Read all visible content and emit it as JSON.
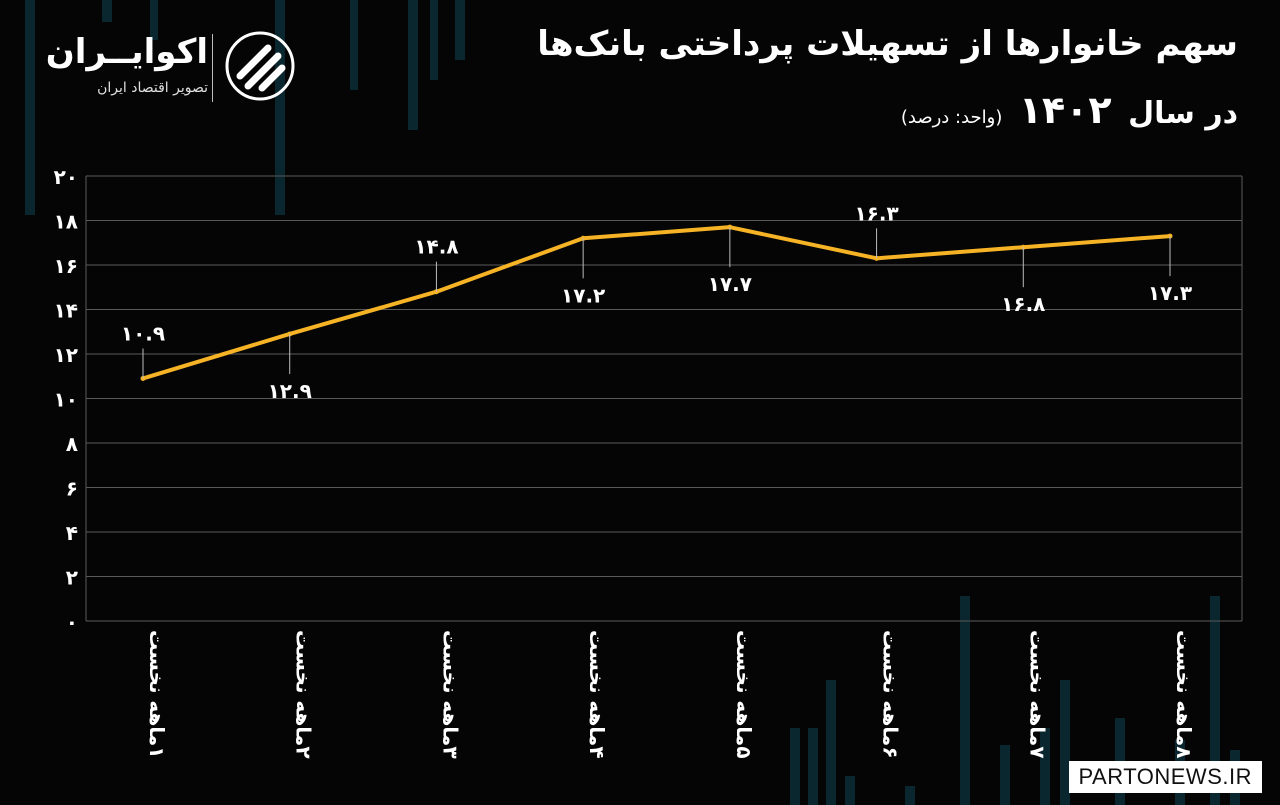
{
  "header": {
    "title_line1": "سهم خانوارها از تسهیلات پرداختی بانک‌ها",
    "title_line2_prefix": "در سال",
    "title_year": "۱۴۰۲",
    "unit": "(واحد: درصد)"
  },
  "brand": {
    "name": "اکوایــران",
    "tagline": "تصویر اقتصاد ایران",
    "watermark": "PARTONEWS.IR"
  },
  "colors": {
    "background": "#050505",
    "line": "#f5b325",
    "grid": "#5a5a5a",
    "text": "#ffffff"
  },
  "chart_data": {
    "type": "line",
    "categories": [
      "۱ماهه نخست",
      "۲ماهه نخست",
      "۳ماهه نخست",
      "۴ماهه نخست",
      "۵ماهه نخست",
      "۶ماهه نخست",
      "۷ماهه نخست",
      "۸ماهه نخست"
    ],
    "values": [
      10.9,
      12.9,
      14.8,
      17.2,
      17.7,
      16.3,
      16.8,
      17.3
    ],
    "data_labels": [
      "۱۰.۹",
      "۱۲.۹",
      "۱۴.۸",
      "۱۷.۲",
      "۱۷.۷",
      "۱۶.۳",
      "۱۶.۸",
      "۱۷.۳"
    ],
    "label_position": [
      "above",
      "below",
      "above",
      "below",
      "below",
      "above",
      "below",
      "below"
    ],
    "ylim": [
      0,
      20
    ],
    "yticks": [
      0,
      2,
      4,
      6,
      8,
      10,
      12,
      14,
      16,
      18,
      20
    ],
    "ytick_labels": [
      "۰",
      "۲",
      "۴",
      "۶",
      "۸",
      "۱۰",
      "۱۲",
      "۱۴",
      "۱۶",
      "۱۸",
      "۲۰"
    ],
    "grid": true,
    "legend": "none",
    "xlabel": "",
    "ylabel": ""
  }
}
